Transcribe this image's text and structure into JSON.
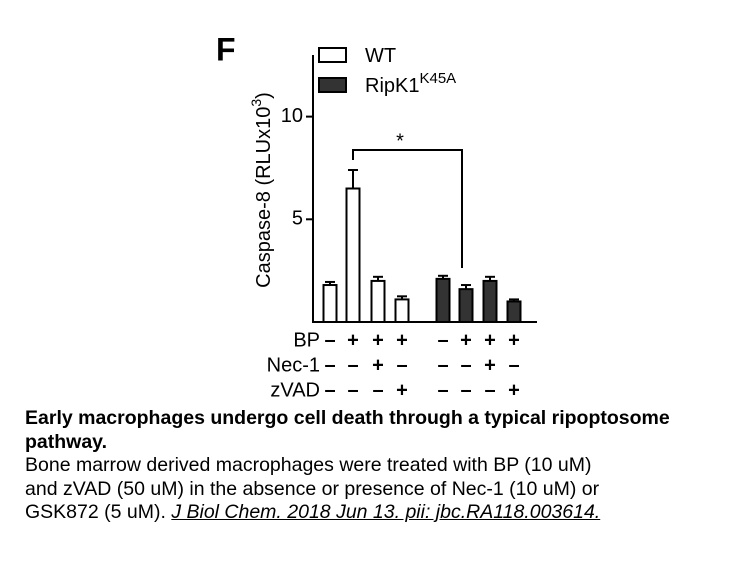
{
  "chart_data": {
    "type": "bar",
    "panel_label": "F",
    "y_label": {
      "text": "Caspase-8 (RLUx10",
      "sup": "3",
      "tail": ")"
    },
    "ylim": [
      0,
      13
    ],
    "yticks": [
      5,
      10
    ],
    "series": [
      {
        "name": "WT",
        "color": "#ffffff",
        "values": [
          1.8,
          6.5,
          2.0,
          1.1
        ],
        "errors": [
          0.15,
          0.9,
          0.2,
          0.15
        ]
      },
      {
        "name": "RipK1",
        "name_sup": "K45A",
        "color": "#333333",
        "values": [
          2.1,
          1.6,
          2.0,
          1.0
        ],
        "errors": [
          0.15,
          0.2,
          0.2,
          0.1
        ]
      }
    ],
    "treatments": [
      {
        "name": "BP",
        "marks": [
          "–",
          "+",
          "+",
          "+",
          "–",
          "+",
          "+",
          "+"
        ]
      },
      {
        "name": "Nec-1",
        "marks": [
          "–",
          "–",
          "+",
          "–",
          "–",
          "–",
          "+",
          "–"
        ]
      },
      {
        "name": "zVAD",
        "marks": [
          "–",
          "–",
          "–",
          "+",
          "–",
          "–",
          "–",
          "+"
        ]
      }
    ],
    "annotation": "*"
  },
  "caption": {
    "title": "Early macrophages undergo cell death through a typical ripoptosome pathway.",
    "lines": [
      "Bone marrow derived macrophages were treated with BP (10 uM)",
      "and zVAD (50 uM) in the absence or presence of Nec-1 (10 uM) or"
    ],
    "last_line": "GSK872 (5 uM).",
    "citation": "J Biol Chem. 2018 Jun 13. pii: jbc.RA118.003614."
  }
}
